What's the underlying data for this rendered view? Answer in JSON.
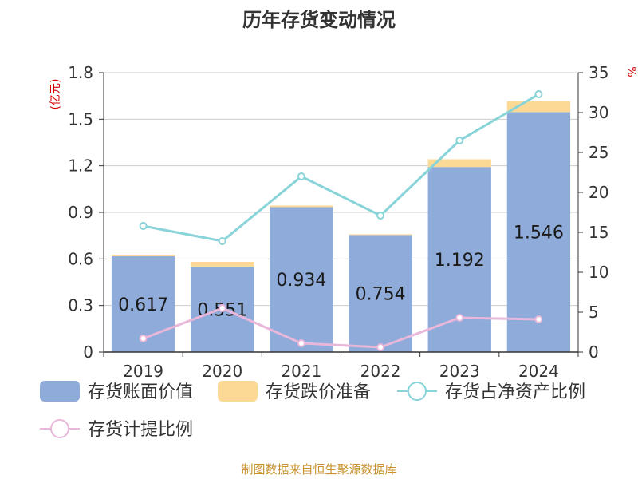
{
  "chart_data": {
    "type": "bar",
    "title": "历年存货变动情况",
    "categories": [
      "2019",
      "2020",
      "2021",
      "2022",
      "2023",
      "2024"
    ],
    "left_axis": {
      "unit": "(亿元)",
      "ylim": [
        0,
        1.8
      ],
      "ticks": [
        "0",
        "0.3",
        "0.6",
        "0.9",
        "1.2",
        "1.5",
        "1.8"
      ]
    },
    "right_axis": {
      "unit": "%",
      "ylim": [
        0,
        35
      ],
      "ticks": [
        "0",
        "5",
        "10",
        "15",
        "20",
        "25",
        "30",
        "35"
      ]
    },
    "series": [
      {
        "name": "存货账面价值",
        "kind": "bar",
        "axis": "left",
        "color": "#8eabd9",
        "values": [
          0.617,
          0.551,
          0.934,
          0.754,
          1.192,
          1.546
        ],
        "labels": [
          "0.617",
          "0.551",
          "0.934",
          "0.754",
          "1.192",
          "1.546"
        ]
      },
      {
        "name": "存货跌价准备",
        "kind": "bar-stacked",
        "axis": "left",
        "color": "#fdd996",
        "values": [
          0.01,
          0.03,
          0.01,
          0.005,
          0.05,
          0.07
        ]
      },
      {
        "name": "存货占净资产比例",
        "kind": "line",
        "axis": "right",
        "color": "#88d4d8",
        "values": [
          15.8,
          13.9,
          22.0,
          17.1,
          26.5,
          32.3
        ]
      },
      {
        "name": "存货计提比例",
        "kind": "line",
        "axis": "right",
        "color": "#e8b7da",
        "values": [
          1.7,
          5.5,
          1.1,
          0.6,
          4.3,
          4.1
        ]
      }
    ],
    "grid": true,
    "legend_position": "bottom"
  },
  "footer": {
    "source": "制图数据来自恒生聚源数据库"
  }
}
